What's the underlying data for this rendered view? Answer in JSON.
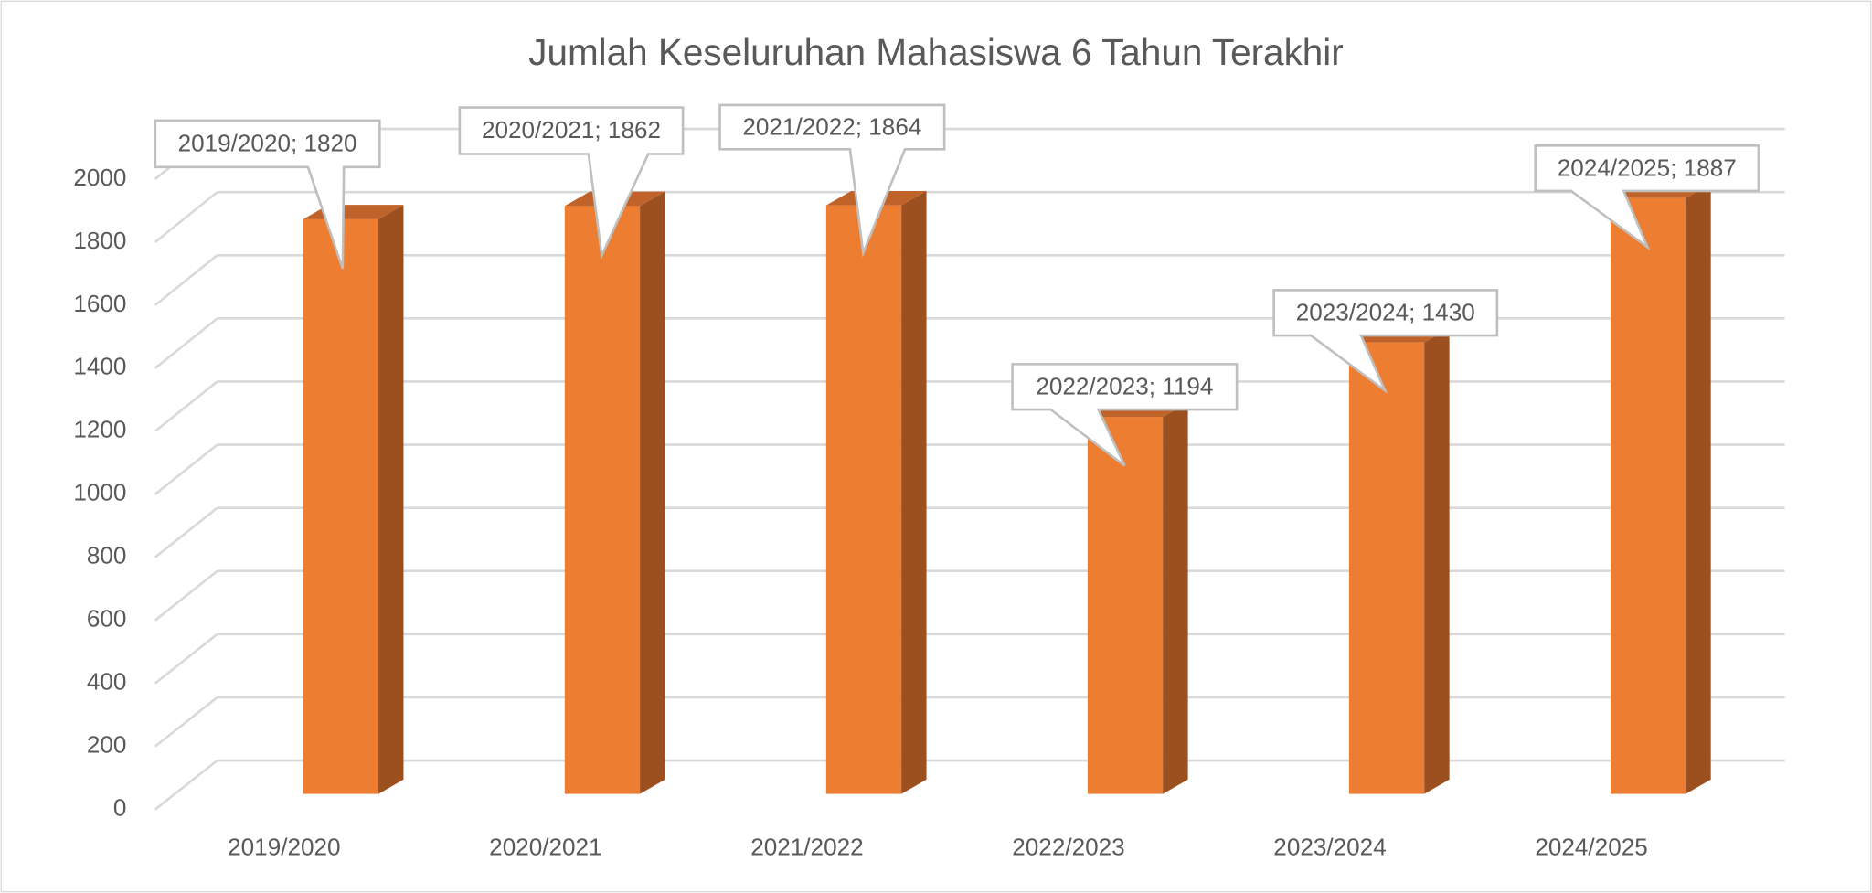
{
  "chart_data": {
    "type": "bar3d",
    "title": "Jumlah Keseluruhan Mahasiswa 6 Tahun Terakhir",
    "categories": [
      "2019/2020",
      "2020/2021",
      "2021/2022",
      "2022/2023",
      "2023/2024",
      "2024/2025"
    ],
    "values": [
      1820,
      1862,
      1864,
      1194,
      1430,
      1887
    ],
    "value_labels": [
      "2019/2020; 1820",
      "2020/2021; 1862",
      "2021/2022; 1864",
      "2022/2023; 1194",
      "2023/2024; 1430",
      "2024/2025; 1887"
    ],
    "color": "#ed7d31",
    "ylim": [
      0,
      2000
    ],
    "yticks": [
      0,
      200,
      400,
      600,
      800,
      1000,
      1200,
      1400,
      1600,
      1800,
      2000
    ],
    "grid": true
  }
}
